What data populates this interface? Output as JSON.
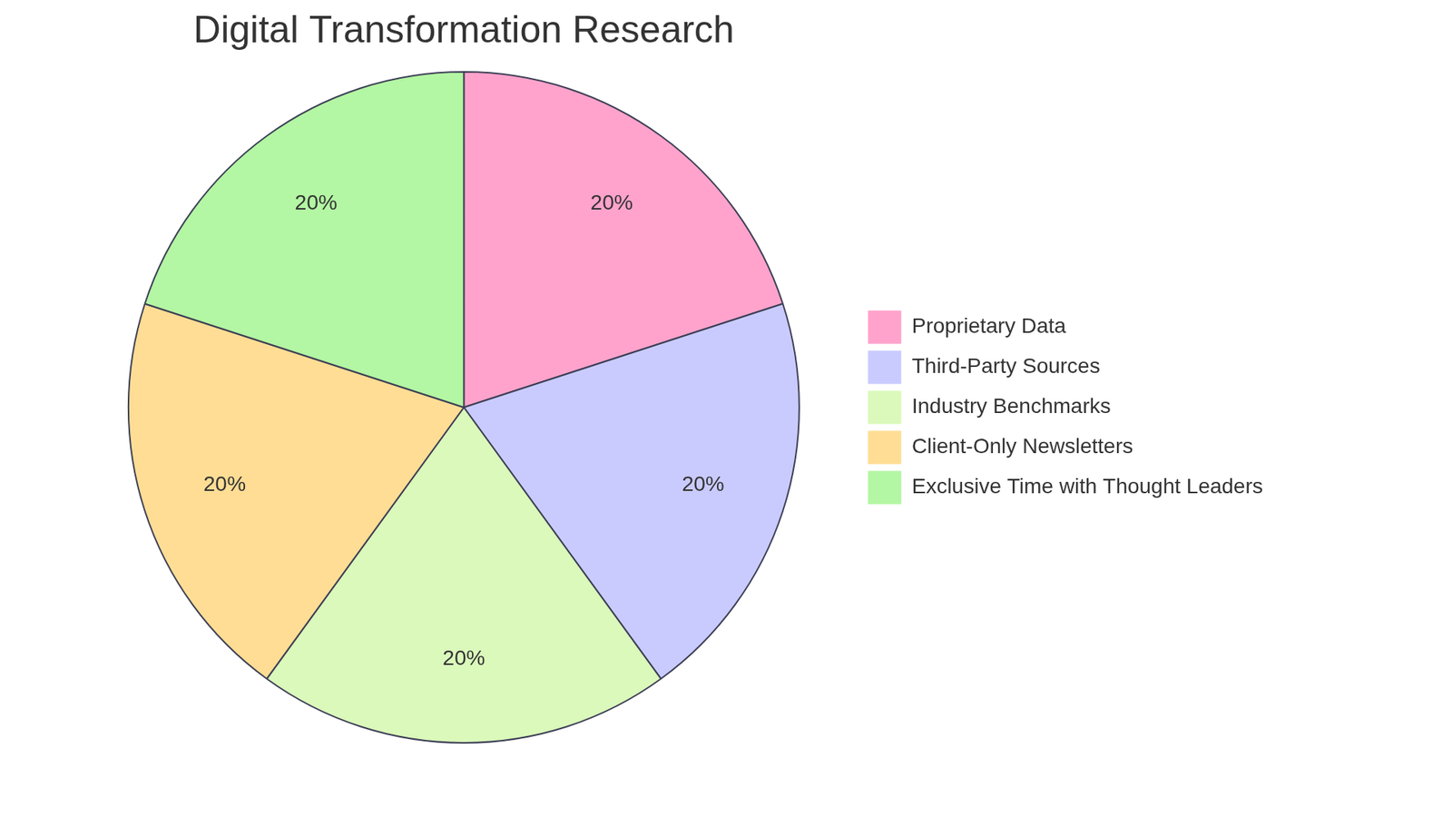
{
  "chart_data": {
    "type": "pie",
    "title": "Digital Transformation Research",
    "categories": [
      "Proprietary Data",
      "Third-Party Sources",
      "Industry Benchmarks",
      "Client-Only Newsletters",
      "Exclusive Time with Thought Leaders"
    ],
    "values": [
      20,
      20,
      20,
      20,
      20
    ],
    "value_labels": [
      "20%",
      "20%",
      "20%",
      "20%",
      "20%"
    ],
    "colors": [
      "#ffa3cc",
      "#c9cbff",
      "#dbf9bb",
      "#ffdd94",
      "#b3f6a3"
    ],
    "data_labels": true,
    "legend": "right"
  }
}
